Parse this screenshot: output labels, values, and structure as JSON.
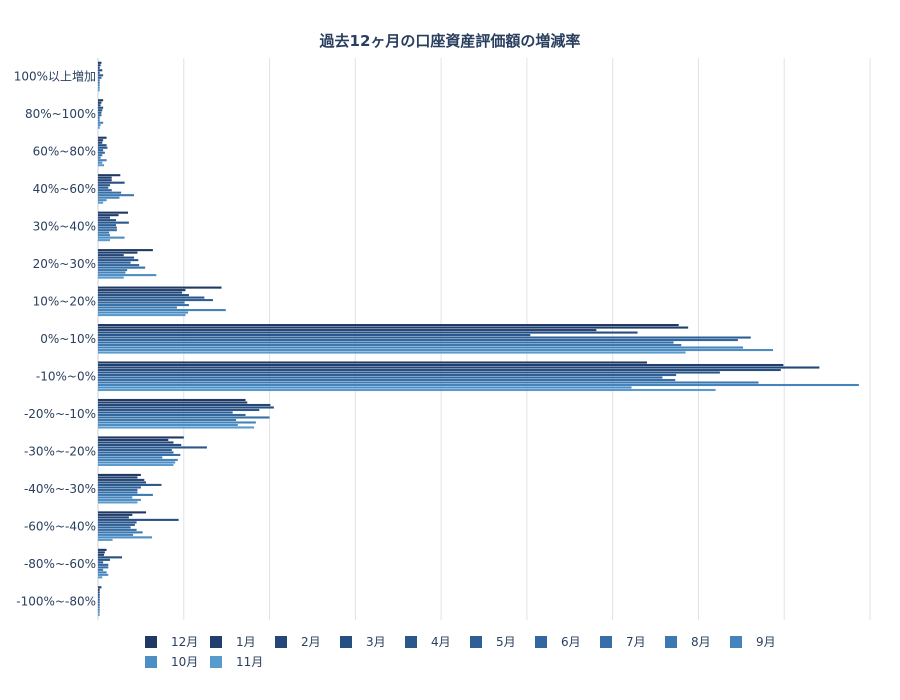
{
  "chart_data": {
    "type": "bar",
    "orientation": "horizontal",
    "title": "過去12ヶ月の口座資産評価額の増減率",
    "xlabel": "",
    "ylabel": "",
    "grid": true,
    "legend_position": "bottom",
    "xlim": [
      0,
      9
    ],
    "categories": [
      "100%以上増加",
      "80%~100%",
      "60%~80%",
      "40%~60%",
      "30%~40%",
      "20%~30%",
      "10%~20%",
      "0%~10%",
      "-10%~0%",
      "-20%~-10%",
      "-30%~-20%",
      "-40%~-30%",
      "-60%~-40%",
      "-80%~-60%",
      "-100%~-80%"
    ],
    "series": [
      {
        "name": "12月",
        "color": "#1f3864",
        "values": [
          0.04,
          0.06,
          0.1,
          0.26,
          0.35,
          0.64,
          1.44,
          6.77,
          6.4,
          1.72,
          1.0,
          0.5,
          0.56,
          0.1,
          0.04
        ]
      },
      {
        "name": "1月",
        "color": "#213f6e",
        "values": [
          0.03,
          0.04,
          0.06,
          0.16,
          0.24,
          0.46,
          1.02,
          6.88,
          7.99,
          1.74,
          0.82,
          0.46,
          0.4,
          0.08,
          0.02
        ]
      },
      {
        "name": "2月",
        "color": "#234778",
        "values": [
          0.02,
          0.03,
          0.05,
          0.16,
          0.14,
          0.3,
          0.98,
          5.81,
          8.41,
          2.01,
          0.88,
          0.54,
          0.36,
          0.07,
          0.02
        ]
      },
      {
        "name": "3月",
        "color": "#264f82",
        "values": [
          0.05,
          0.06,
          0.1,
          0.31,
          0.21,
          0.42,
          1.06,
          6.29,
          7.96,
          2.05,
          0.97,
          0.56,
          0.94,
          0.28,
          0.02
        ]
      },
      {
        "name": "4月",
        "color": "#2a578c",
        "values": [
          0.02,
          0.05,
          0.11,
          0.14,
          0.36,
          0.47,
          1.24,
          5.04,
          7.25,
          1.88,
          1.27,
          0.74,
          0.45,
          0.14,
          0.02
        ]
      },
      {
        "name": "5月",
        "color": "#2e5f96",
        "values": [
          0.06,
          0.04,
          0.06,
          0.12,
          0.21,
          0.38,
          1.34,
          7.61,
          6.74,
          1.57,
          0.86,
          0.5,
          0.43,
          0.06,
          0.02
        ]
      },
      {
        "name": "6月",
        "color": "#32679f",
        "values": [
          0.04,
          0.04,
          0.08,
          0.16,
          0.22,
          0.48,
          1.01,
          7.46,
          6.58,
          1.72,
          0.88,
          0.46,
          0.38,
          0.12,
          0.02
        ]
      },
      {
        "name": "7月",
        "color": "#3770a8",
        "values": [
          0.02,
          0.02,
          0.05,
          0.27,
          0.22,
          0.55,
          1.06,
          6.71,
          6.73,
          2.0,
          0.96,
          0.46,
          0.45,
          0.12,
          0.02
        ]
      },
      {
        "name": "8月",
        "color": "#3d79b1",
        "values": [
          0.02,
          0.02,
          0.03,
          0.42,
          0.13,
          0.34,
          0.92,
          6.8,
          7.7,
          1.61,
          0.75,
          0.64,
          0.52,
          0.06,
          0.02
        ]
      },
      {
        "name": "9月",
        "color": "#4483bb",
        "values": [
          0.02,
          0.06,
          0.1,
          0.25,
          0.14,
          0.32,
          1.49,
          7.52,
          8.87,
          1.84,
          0.93,
          0.4,
          0.41,
          0.1,
          0.02
        ]
      },
      {
        "name": "10月",
        "color": "#4d8ec4",
        "values": [
          0.02,
          0.03,
          0.05,
          0.1,
          0.31,
          0.68,
          1.05,
          7.87,
          6.22,
          1.63,
          0.9,
          0.5,
          0.63,
          0.12,
          0.02
        ]
      },
      {
        "name": "11月",
        "color": "#5a9bcd",
        "values": [
          0.02,
          0.02,
          0.07,
          0.06,
          0.14,
          0.3,
          1.02,
          6.85,
          7.2,
          1.82,
          0.88,
          0.46,
          0.17,
          0.05,
          0.02
        ]
      }
    ]
  }
}
